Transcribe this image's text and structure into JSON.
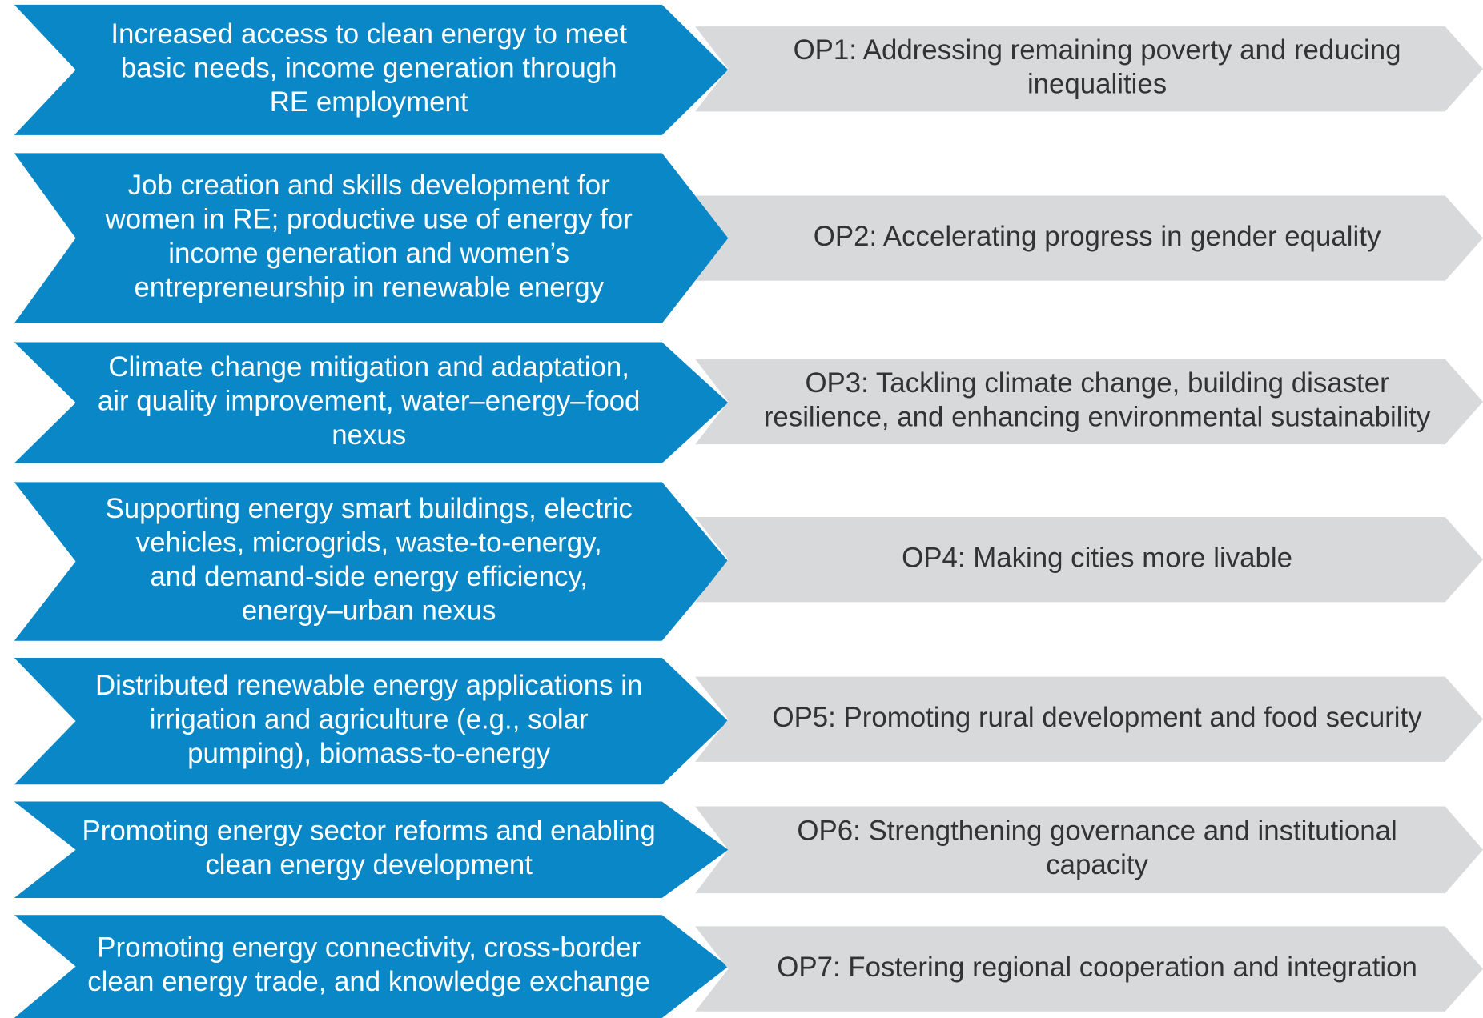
{
  "rows": [
    {
      "left": [
        "Increased access to clean energy to meet",
        "basic needs, income generation through",
        "RE employment"
      ],
      "right": [
        "OP1: Addressing remaining poverty and reducing",
        "inequalities"
      ]
    },
    {
      "left": [
        "Job creation and skills development for",
        "women in RE; productive use of energy for",
        "income generation and women’s",
        "entrepreneurship in renewable energy"
      ],
      "right": [
        "OP2: Accelerating progress in gender equality"
      ]
    },
    {
      "left": [
        "Climate change mitigation and adaptation,",
        "air quality improvement, water–energy–food",
        "nexus"
      ],
      "right": [
        "OP3: Tackling climate change, building disaster",
        "resilience, and enhancing environmental sustainability"
      ]
    },
    {
      "left": [
        "Supporting energy smart buildings, electric",
        "vehicles, microgrids, waste-to-energy,",
        "and demand-side energy efficiency,",
        "energy–urban nexus"
      ],
      "right": [
        "OP4: Making cities more livable"
      ]
    },
    {
      "left": [
        "Distributed renewable energy applications in",
        "irrigation and agriculture (e.g., solar",
        "pumping), biomass-to-energy"
      ],
      "right": [
        "OP5: Promoting rural development and food security"
      ]
    },
    {
      "left": [
        "Promoting energy sector reforms and enabling",
        "clean energy development"
      ],
      "right": [
        "OP6: Strengthening governance and institutional",
        "capacity"
      ]
    },
    {
      "left": [
        "Promoting energy connectivity, cross-border",
        "clean energy trade, and knowledge exchange"
      ],
      "right": [
        "OP7: Fostering regional cooperation and integration"
      ]
    }
  ]
}
